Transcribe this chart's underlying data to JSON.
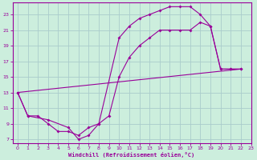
{
  "xlabel": "Windchill (Refroidissement éolien,°C)",
  "bg_color": "#cceedd",
  "grid_color": "#aacccc",
  "line_color": "#990099",
  "xlim": [
    -0.5,
    23
  ],
  "ylim": [
    6.5,
    24.5
  ],
  "xticks": [
    0,
    1,
    2,
    3,
    4,
    5,
    6,
    7,
    8,
    9,
    10,
    11,
    12,
    13,
    14,
    15,
    16,
    17,
    18,
    19,
    20,
    21,
    22,
    23
  ],
  "yticks": [
    7,
    9,
    11,
    13,
    15,
    17,
    19,
    21,
    23
  ],
  "curve1_x": [
    0,
    1,
    2,
    3,
    4,
    5,
    6,
    7,
    8,
    10,
    11,
    12,
    13,
    14,
    15,
    16,
    17,
    18,
    19,
    20,
    21,
    22
  ],
  "curve1_y": [
    13,
    10,
    10,
    9,
    8,
    8,
    7.5,
    8.5,
    9,
    20,
    21.5,
    22.5,
    23,
    23.5,
    24,
    24,
    24,
    23,
    21.5,
    16,
    16,
    16
  ],
  "curve2_x": [
    0,
    1,
    3,
    5,
    6,
    7,
    8,
    9,
    10,
    11,
    12,
    13,
    14,
    15,
    16,
    17,
    18,
    19,
    20,
    21,
    22
  ],
  "curve2_y": [
    13,
    10,
    9.5,
    8.5,
    7,
    7.5,
    9,
    10,
    15,
    17.5,
    19,
    20,
    21,
    21,
    21,
    21,
    22,
    21.5,
    16,
    16,
    16
  ],
  "curve3_x": [
    0,
    22
  ],
  "curve3_y": [
    13,
    16
  ]
}
